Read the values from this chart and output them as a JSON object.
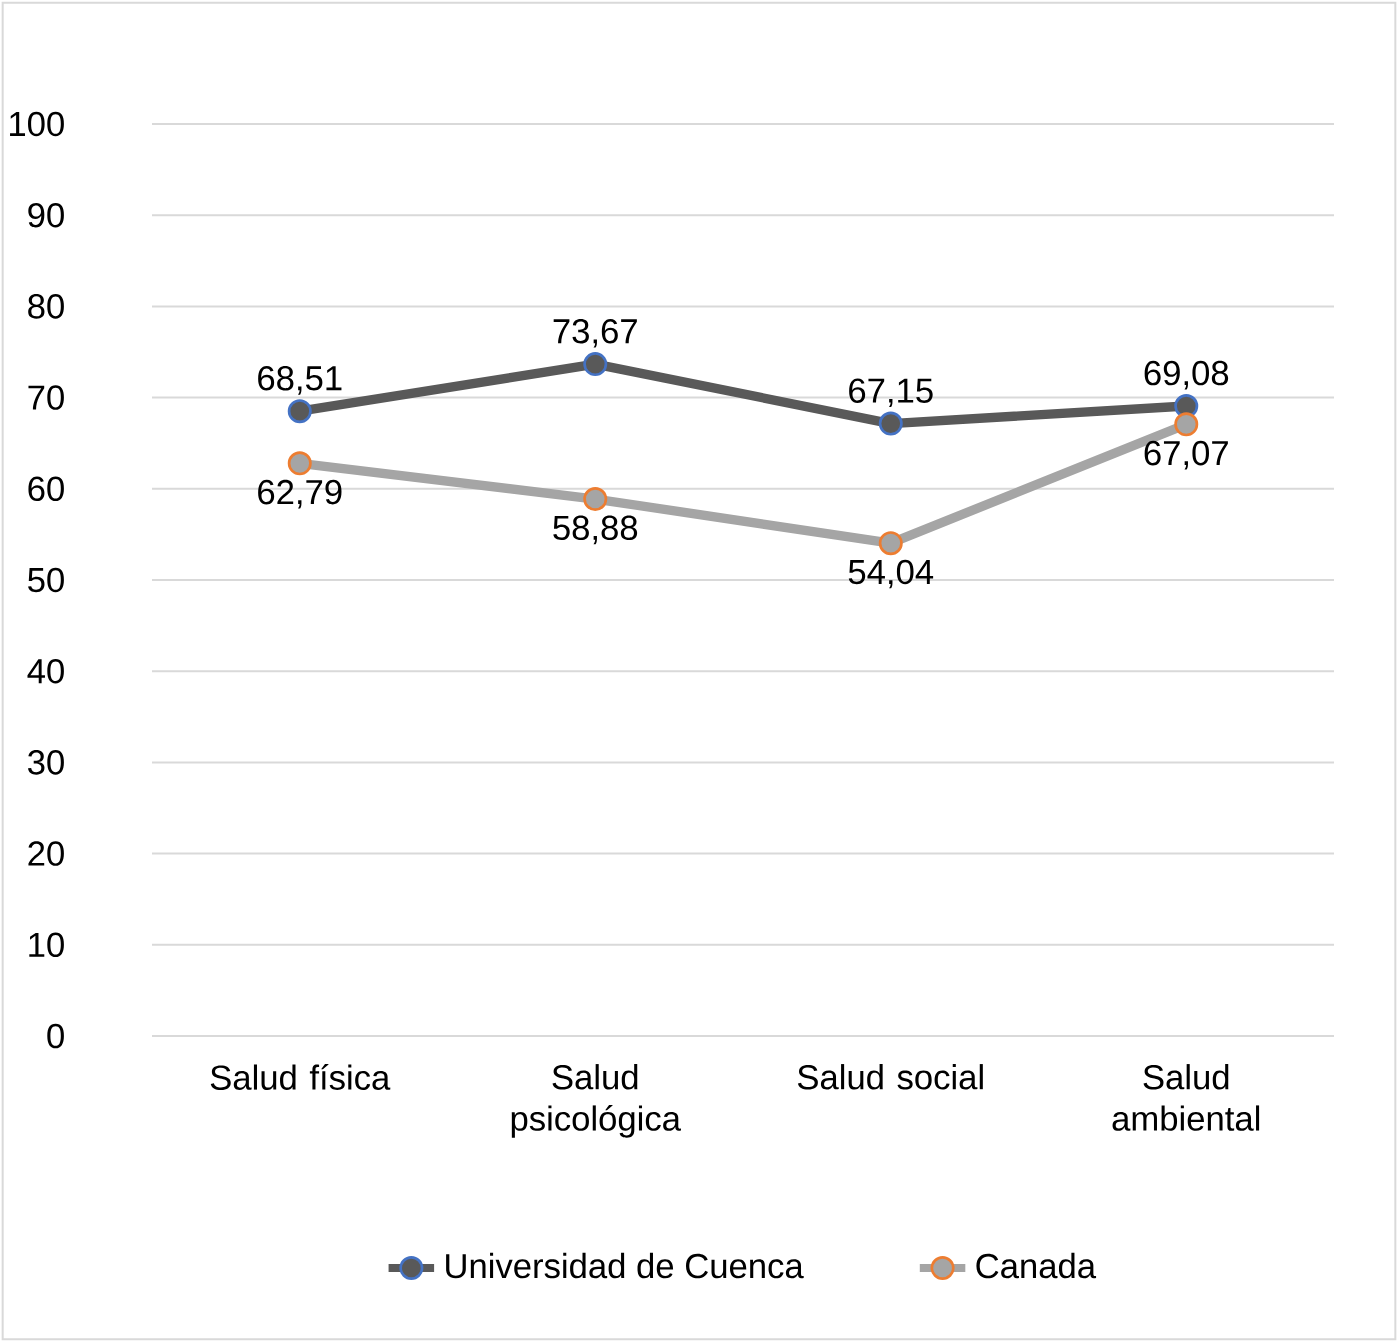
{
  "chart_data": {
    "type": "line",
    "categories": [
      "Salud física",
      "Salud psicológica",
      "Salud social",
      "Salud ambiental"
    ],
    "series": [
      {
        "name": "Universidad de Cuenca",
        "color": "#595959",
        "values": [
          68.51,
          73.67,
          67.15,
          69.08
        ],
        "value_labels": [
          "68,51",
          "73,67",
          "67,15",
          "69,08"
        ]
      },
      {
        "name": "Canada",
        "color": "#a5a5a5",
        "values": [
          62.79,
          58.88,
          54.04,
          67.07
        ],
        "value_labels": [
          "62,79",
          "58,88",
          "54,04",
          "67,07"
        ]
      }
    ],
    "ylim": [
      0,
      100
    ],
    "yticks": [
      0,
      10,
      20,
      30,
      40,
      50,
      60,
      70,
      80,
      90,
      100
    ],
    "grid": "y",
    "legend": "bottom",
    "marker": "circle",
    "line_style": "solid"
  }
}
